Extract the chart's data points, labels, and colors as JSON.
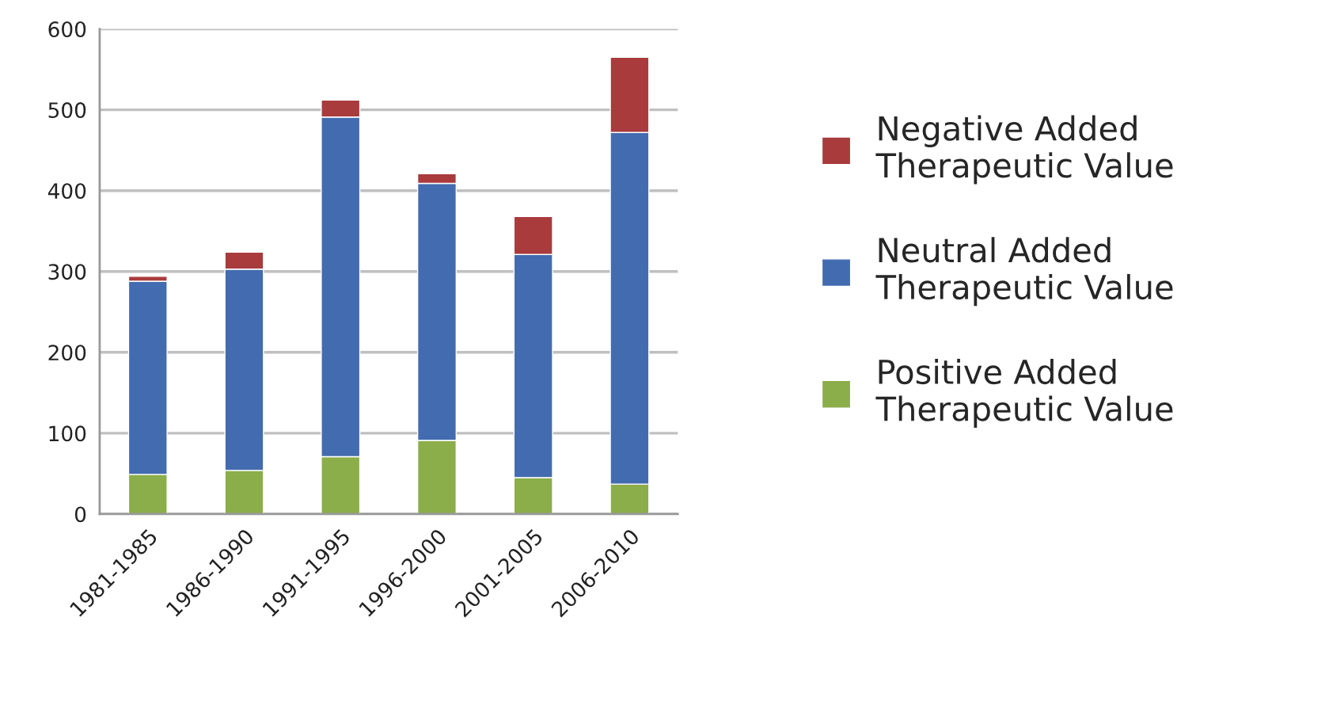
{
  "chart_data": {
    "type": "bar",
    "stacked": true,
    "categories": [
      "1981-1985",
      "1986-1990",
      "1991-1995",
      "1996-2000",
      "2001-2005",
      "2006-2010"
    ],
    "series": [
      {
        "name": "Positive Added Therapeutic Value",
        "color": "#8bad4a",
        "values": [
          49,
          54,
          71,
          91,
          45,
          37
        ]
      },
      {
        "name": "Neutral Added Therapeutic Value",
        "color": "#436baf",
        "values": [
          239,
          249,
          420,
          318,
          276,
          435
        ]
      },
      {
        "name": "Negative Added Therapeutic Value",
        "color": "#a93b3d",
        "values": [
          6,
          21,
          21,
          12,
          47,
          93
        ]
      }
    ],
    "ylim": [
      0,
      600
    ],
    "yticks": [
      0,
      100,
      200,
      300,
      400,
      500,
      600
    ],
    "grid": "y",
    "legend": "right"
  }
}
